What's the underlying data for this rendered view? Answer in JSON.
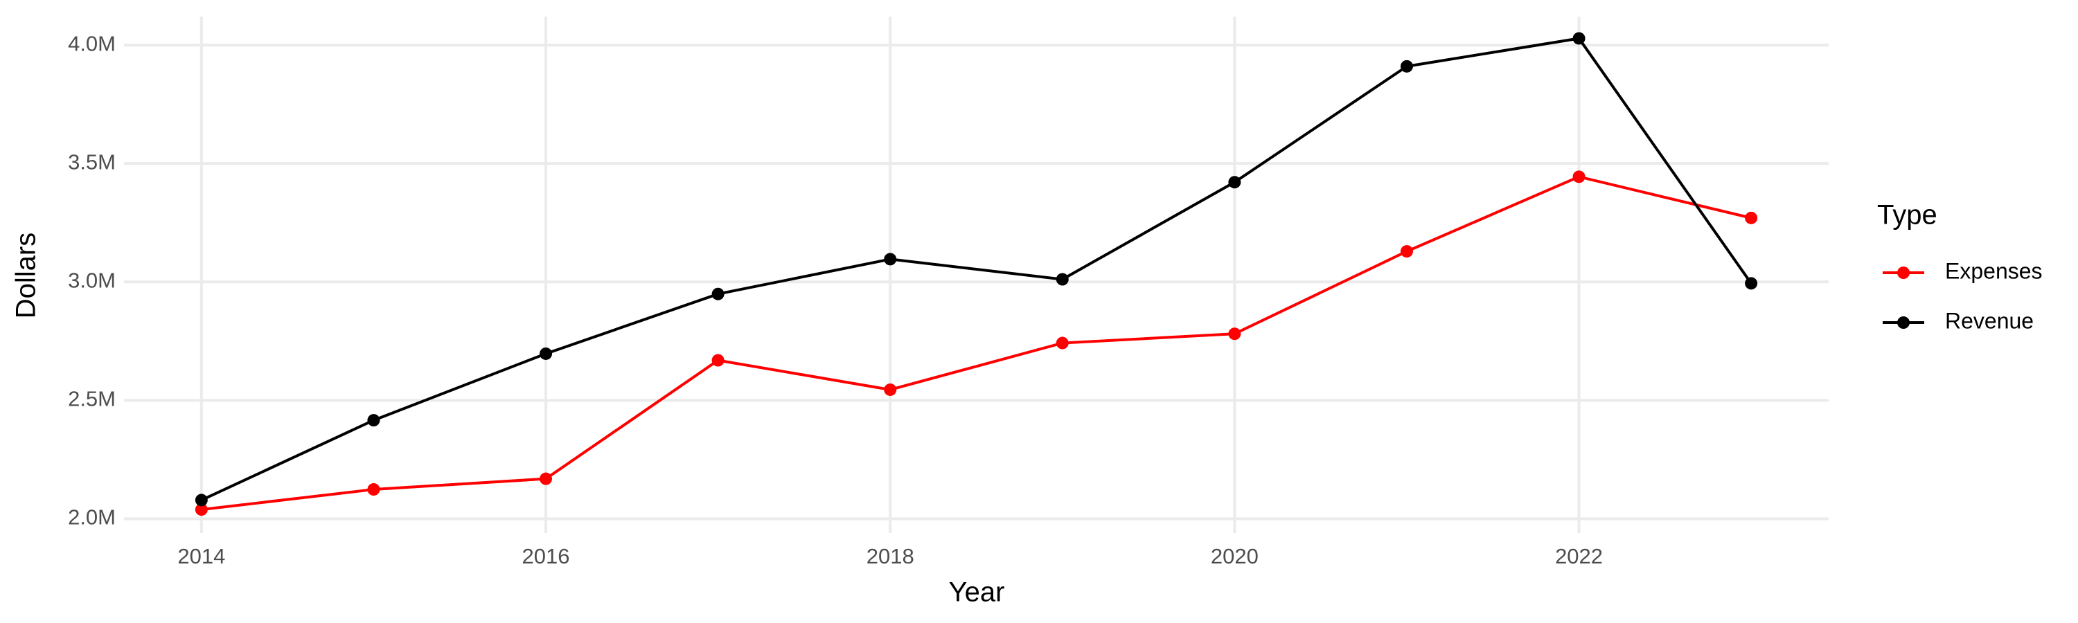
{
  "chart_data": {
    "type": "line",
    "x_label": "Year",
    "y_label": "Dollars",
    "legend_title": "Type",
    "legend_position": "right",
    "grid": true,
    "x": [
      2014,
      2015,
      2016,
      2017,
      2018,
      2019,
      2020,
      2021,
      2022,
      2023
    ],
    "series": [
      {
        "name": "Expenses",
        "color": "#ff0000",
        "values": [
          2039000,
          2124000,
          2169000,
          2669000,
          2545000,
          2742000,
          2781000,
          3129000,
          3444000,
          3270000
        ]
      },
      {
        "name": "Revenue",
        "color": "#000000",
        "values": [
          2079000,
          2416000,
          2697000,
          2949000,
          3096000,
          3011000,
          3421000,
          3910000,
          4028000,
          2994000
        ]
      }
    ],
    "xlim": [
      2013.55,
      2023.45
    ],
    "xticks": [
      2014,
      2016,
      2018,
      2020,
      2022
    ],
    "ylim": [
      1940000,
      4120000
    ],
    "yticks": [
      {
        "value": 2000000,
        "label": "2.0M"
      },
      {
        "value": 2500000,
        "label": "2.5M"
      },
      {
        "value": 3000000,
        "label": "3.0M"
      },
      {
        "value": 3500000,
        "label": "3.5M"
      },
      {
        "value": 4000000,
        "label": "4.0M"
      }
    ]
  }
}
